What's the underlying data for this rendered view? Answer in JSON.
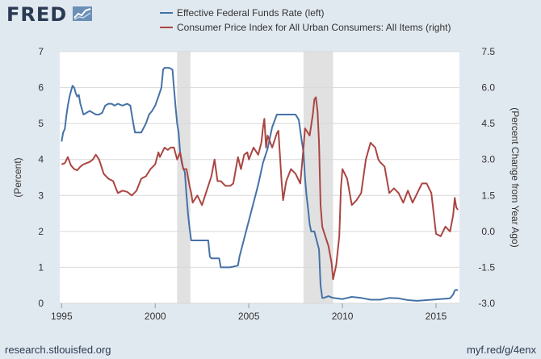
{
  "brand": {
    "name": "FRED",
    "icon": "fred-chart-logo-icon",
    "source_url": "research.stlouisfed.org",
    "short_url": "myf.red/g/4enx"
  },
  "colors": {
    "background": "#e1e9f0",
    "plot": "#ffffff",
    "series_ffr": "#4572a7",
    "series_cpi": "#aa4643",
    "recession": "#e1e1e1",
    "grid": "#d8d8d8"
  },
  "chart_data": {
    "type": "line",
    "title": "",
    "legend": [
      "Effective Federal Funds Rate (left)",
      "Consumer Price Index for All Urban Consumers: All Items (right)"
    ],
    "legend_position": "top",
    "xlabel": "",
    "ylabel_left": "(Percent)",
    "ylabel_right": "(Percent Change from Year Ago)",
    "xlim": [
      1994.9,
      2016.25
    ],
    "ylim_left": [
      0,
      7
    ],
    "ylim_right": [
      -3.0,
      7.5
    ],
    "x_ticks": [
      1995,
      2000,
      2005,
      2010,
      2015
    ],
    "x_tick_labels": [
      "1995",
      "2000",
      "2005",
      "2010",
      "2015"
    ],
    "y_ticks_left": [
      0,
      1,
      2,
      3,
      4,
      5,
      6,
      7
    ],
    "y_tick_labels_left": [
      "0",
      "1",
      "2",
      "3",
      "4",
      "5",
      "6",
      "7"
    ],
    "y_ticks_right": [
      -3.0,
      -1.5,
      0.0,
      1.5,
      3.0,
      4.5,
      6.0,
      7.5
    ],
    "y_tick_labels_right": [
      "-3.0",
      "-1.5",
      "0.0",
      "1.5",
      "3.0",
      "4.5",
      "6.0",
      "7.5"
    ],
    "grid": true,
    "recessions": [
      [
        2001.17,
        2001.88
      ],
      [
        2007.92,
        2009.5
      ]
    ],
    "series": [
      {
        "name": "Effective Federal Funds Rate (left)",
        "axis": "left",
        "color": "#4572a7",
        "x": [
          1995.0,
          1995.08,
          1995.17,
          1995.25,
          1995.33,
          1995.42,
          1995.5,
          1995.58,
          1995.67,
          1995.75,
          1995.83,
          1995.92,
          1996.0,
          1996.17,
          1996.33,
          1996.5,
          1996.67,
          1996.83,
          1997.0,
          1997.17,
          1997.33,
          1997.5,
          1997.67,
          1997.83,
          1998.0,
          1998.25,
          1998.5,
          1998.67,
          1998.83,
          1998.92,
          1999.0,
          1999.25,
          1999.5,
          1999.67,
          1999.83,
          2000.0,
          2000.17,
          2000.33,
          2000.42,
          2000.5,
          2000.75,
          2000.92,
          2001.0,
          2001.08,
          2001.17,
          2001.25,
          2001.33,
          2001.42,
          2001.5,
          2001.58,
          2001.67,
          2001.75,
          2001.83,
          2001.92,
          2002.0,
          2002.5,
          2002.83,
          2002.92,
          2003.0,
          2003.42,
          2003.5,
          2003.75,
          2004.0,
          2004.42,
          2004.5,
          2004.75,
          2005.0,
          2005.25,
          2005.5,
          2005.75,
          2006.0,
          2006.25,
          2006.5,
          2006.75,
          2007.0,
          2007.5,
          2007.67,
          2007.75,
          2007.83,
          2007.92,
          2008.0,
          2008.08,
          2008.17,
          2008.25,
          2008.33,
          2008.42,
          2008.5,
          2008.75,
          2008.83,
          2008.92,
          2009.0,
          2009.25,
          2009.5,
          2010.0,
          2010.5,
          2011.0,
          2011.5,
          2012.0,
          2012.5,
          2013.0,
          2013.5,
          2014.0,
          2014.5,
          2015.0,
          2015.5,
          2015.75,
          2015.92,
          2016.0,
          2016.08,
          2016.17
        ],
        "values": [
          4.5,
          4.75,
          4.85,
          5.2,
          5.5,
          5.75,
          5.9,
          6.05,
          6.0,
          5.85,
          5.75,
          5.8,
          5.55,
          5.25,
          5.3,
          5.35,
          5.3,
          5.25,
          5.25,
          5.3,
          5.5,
          5.55,
          5.55,
          5.5,
          5.55,
          5.5,
          5.55,
          5.5,
          5.0,
          4.75,
          4.75,
          4.75,
          5.0,
          5.25,
          5.35,
          5.5,
          5.75,
          6.0,
          6.5,
          6.55,
          6.55,
          6.5,
          6.0,
          5.5,
          5.0,
          4.75,
          4.2,
          3.9,
          3.75,
          3.65,
          3.0,
          2.5,
          2.1,
          1.75,
          1.75,
          1.75,
          1.75,
          1.3,
          1.25,
          1.25,
          1.0,
          1.0,
          1.0,
          1.05,
          1.3,
          1.8,
          2.3,
          2.8,
          3.3,
          3.9,
          4.3,
          4.9,
          5.25,
          5.25,
          5.25,
          5.25,
          5.1,
          4.8,
          4.5,
          4.2,
          3.5,
          3.0,
          2.6,
          2.2,
          2.0,
          2.0,
          2.0,
          1.5,
          0.5,
          0.15,
          0.15,
          0.2,
          0.15,
          0.12,
          0.18,
          0.15,
          0.1,
          0.1,
          0.15,
          0.14,
          0.09,
          0.07,
          0.09,
          0.11,
          0.13,
          0.14,
          0.25,
          0.36,
          0.38,
          0.36
        ]
      },
      {
        "name": "Consumer Price Index for All Urban Consumers: All Items (right)",
        "axis": "right",
        "color": "#aa4643",
        "x": [
          1995.0,
          1995.17,
          1995.33,
          1995.5,
          1995.67,
          1995.83,
          1996.0,
          1996.17,
          1996.33,
          1996.5,
          1996.67,
          1996.83,
          1997.0,
          1997.25,
          1997.5,
          1997.75,
          1998.0,
          1998.25,
          1998.5,
          1998.75,
          1999.0,
          1999.25,
          1999.5,
          1999.75,
          2000.0,
          2000.17,
          2000.25,
          2000.5,
          2000.67,
          2000.83,
          2001.0,
          2001.17,
          2001.33,
          2001.5,
          2001.67,
          2001.83,
          2001.92,
          2002.0,
          2002.25,
          2002.5,
          2002.75,
          2003.0,
          2003.17,
          2003.33,
          2003.5,
          2003.75,
          2004.0,
          2004.17,
          2004.42,
          2004.58,
          2004.75,
          2004.92,
          2005.0,
          2005.25,
          2005.5,
          2005.67,
          2005.75,
          2005.83,
          2005.92,
          2006.0,
          2006.25,
          2006.5,
          2006.58,
          2006.75,
          2006.83,
          2007.0,
          2007.25,
          2007.5,
          2007.75,
          2007.92,
          2008.0,
          2008.25,
          2008.42,
          2008.5,
          2008.58,
          2008.67,
          2008.75,
          2008.83,
          2008.92,
          2009.0,
          2009.25,
          2009.42,
          2009.5,
          2009.67,
          2009.83,
          2009.92,
          2010.0,
          2010.25,
          2010.5,
          2010.75,
          2011.0,
          2011.25,
          2011.5,
          2011.75,
          2011.92,
          2012.0,
          2012.25,
          2012.5,
          2012.75,
          2013.0,
          2013.25,
          2013.5,
          2013.75,
          2014.0,
          2014.25,
          2014.5,
          2014.75,
          2015.0,
          2015.25,
          2015.5,
          2015.75,
          2015.92,
          2016.0,
          2016.08,
          2016.17
        ],
        "values": [
          2.8,
          2.85,
          3.1,
          2.75,
          2.6,
          2.55,
          2.7,
          2.8,
          2.85,
          2.9,
          3.0,
          3.2,
          3.0,
          2.4,
          2.2,
          2.1,
          1.6,
          1.7,
          1.65,
          1.5,
          1.7,
          2.2,
          2.3,
          2.6,
          2.8,
          3.3,
          3.1,
          3.5,
          3.4,
          3.5,
          3.5,
          3.0,
          3.3,
          2.6,
          2.6,
          1.9,
          1.6,
          1.2,
          1.5,
          1.1,
          1.7,
          2.3,
          3.0,
          2.1,
          2.1,
          1.9,
          1.9,
          2.0,
          3.1,
          2.6,
          3.2,
          3.3,
          3.0,
          3.5,
          3.2,
          3.7,
          4.3,
          4.7,
          3.5,
          4.0,
          3.5,
          4.1,
          4.2,
          2.1,
          1.3,
          2.1,
          2.6,
          2.4,
          2.0,
          3.5,
          4.3,
          4.0,
          4.9,
          5.5,
          5.6,
          5.0,
          3.7,
          1.1,
          0.2,
          0.0,
          -0.6,
          -1.3,
          -2.0,
          -1.4,
          -0.2,
          1.8,
          2.6,
          2.2,
          1.1,
          1.3,
          1.6,
          3.0,
          3.7,
          3.5,
          3.0,
          2.9,
          2.7,
          1.6,
          1.8,
          1.6,
          1.2,
          1.7,
          1.2,
          1.6,
          2.0,
          2.0,
          1.6,
          -0.1,
          -0.2,
          0.2,
          0.0,
          0.7,
          1.4,
          1.0,
          0.9
        ]
      }
    ]
  }
}
